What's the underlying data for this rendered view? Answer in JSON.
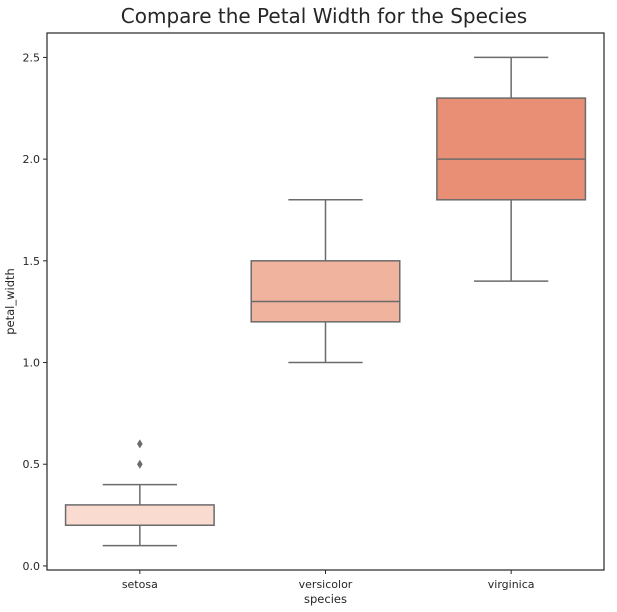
{
  "chart_data": {
    "type": "box",
    "title": "Compare the Petal Width for the Species",
    "xlabel": "species",
    "ylabel": "petal_width",
    "ylim": [
      -0.02,
      2.62
    ],
    "yticks": [
      "0.0",
      "0.5",
      "1.0",
      "1.5",
      "2.0",
      "2.5"
    ],
    "grid": false,
    "categories": [
      "setosa",
      "versicolor",
      "virginica"
    ],
    "boxes": [
      {
        "category": "setosa",
        "whisker_low": 0.1,
        "q1": 0.2,
        "median": 0.2,
        "q3": 0.3,
        "whisker_high": 0.4,
        "outliers": [
          0.5,
          0.6
        ],
        "color": "#f9dccf"
      },
      {
        "category": "versicolor",
        "whisker_low": 1.0,
        "q1": 1.2,
        "median": 1.3,
        "q3": 1.5,
        "whisker_high": 1.8,
        "outliers": [],
        "color": "#f0b39d"
      },
      {
        "category": "virginica",
        "whisker_low": 1.4,
        "q1": 1.8,
        "median": 2.0,
        "q3": 2.3,
        "whisker_high": 2.5,
        "outliers": [],
        "color": "#e88f75"
      }
    ],
    "line_color": "#6b6b6b",
    "frame_color": "#262626"
  }
}
